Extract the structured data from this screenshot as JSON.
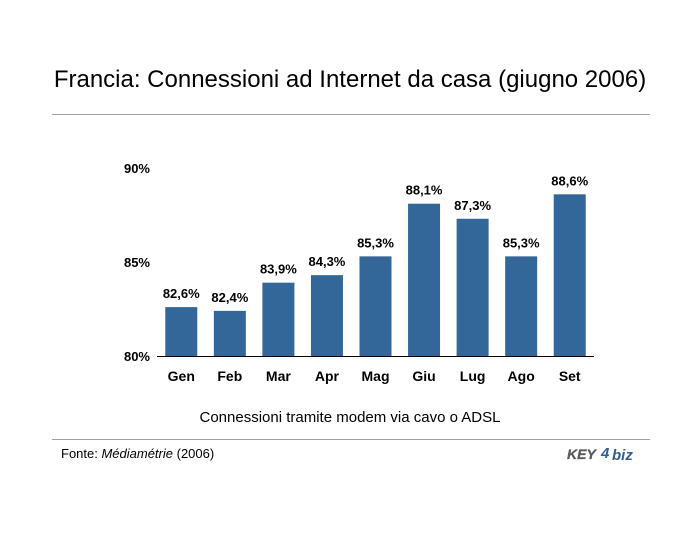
{
  "title": "Francia: Connessioni ad Internet da casa (giugno 2006)",
  "caption": "Connessioni tramite modem via cavo o ADSL",
  "source": {
    "prefix": "Fonte: ",
    "name": "Médiamétrie",
    "suffix": " (2006)"
  },
  "logo": {
    "text_key": "KEY",
    "text_4": "4",
    "text_biz": "biz",
    "colors": {
      "key": "#5a5a5a",
      "four": "#2f5e94",
      "biz": "#2f5e94"
    }
  },
  "colors": {
    "bar": "#336699",
    "axis": "#000000",
    "rule": "#a0a0a0"
  },
  "chart_data": {
    "type": "bar",
    "title": "",
    "xlabel": "",
    "ylabel": "",
    "categories": [
      "Gen",
      "Feb",
      "Mar",
      "Apr",
      "Mag",
      "Giu",
      "Lug",
      "Ago",
      "Set"
    ],
    "values": [
      82.6,
      82.4,
      83.9,
      84.3,
      85.3,
      88.1,
      87.3,
      85.3,
      88.6
    ],
    "data_labels": [
      "82,6%",
      "82,4%",
      "83,9%",
      "84,3%",
      "85,3%",
      "88,1%",
      "87,3%",
      "85,3%",
      "88,6%"
    ],
    "ylim": [
      80,
      90
    ],
    "yticks": [
      80,
      85,
      90
    ],
    "ytick_labels": [
      "80%",
      "85%",
      "90%"
    ],
    "grid": false,
    "legend": "none"
  }
}
